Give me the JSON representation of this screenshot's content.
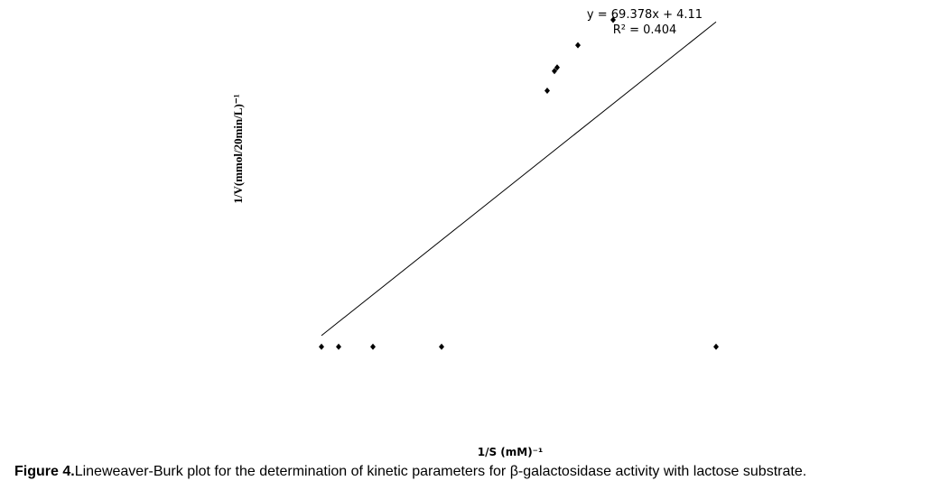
{
  "chart_data": {
    "type": "scatter",
    "x_label": "1/S (mM)⁻¹",
    "y_label": "1/V(mmol/20min/L)⁻¹",
    "series": [
      {
        "color": "#000000",
        "x": [
          0.0112,
          0.015,
          0.0226,
          0.0378,
          0.0986,
          0.0612,
          0.0628,
          0.0634,
          0.068,
          0.0758
        ],
        "values": [
          4.67,
          4.67,
          4.67,
          4.67,
          4.67,
          9.62,
          10.0,
          10.07,
          10.5,
          10.99
        ]
      }
    ],
    "trendline": {
      "slope": 69.378,
      "intercept": 4.11,
      "equation": "y = 69.378x + 4.11",
      "r2": "R² = 0.404"
    },
    "xlim": [
      0,
      0.104
    ],
    "ylim": [
      3,
      11.2
    ]
  },
  "caption": {
    "label": "Figure 4.",
    "text": "Lineweaver-Burk plot for the determination of kinetic parameters for β-galactosidase activity with lactose substrate."
  }
}
